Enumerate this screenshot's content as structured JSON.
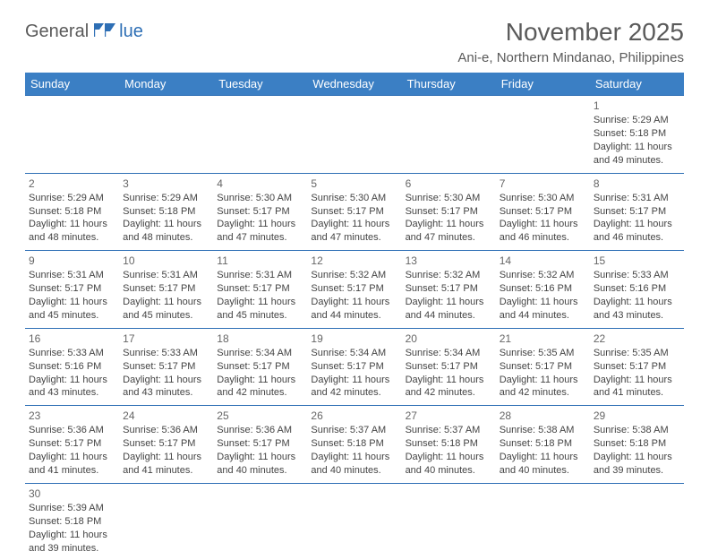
{
  "logo": {
    "text1": "General",
    "text2": "lue"
  },
  "title": "November 2025",
  "location": "Ani-e, Northern Mindanao, Philippines",
  "header_bg": "#3b7fc4",
  "border_color": "#2e6fb5",
  "weekdays": [
    "Sunday",
    "Monday",
    "Tuesday",
    "Wednesday",
    "Thursday",
    "Friday",
    "Saturday"
  ],
  "leading_blanks": 6,
  "days": [
    {
      "n": 1,
      "sr": "5:29 AM",
      "ss": "5:18 PM",
      "dl": "11 hours and 49 minutes."
    },
    {
      "n": 2,
      "sr": "5:29 AM",
      "ss": "5:18 PM",
      "dl": "11 hours and 48 minutes."
    },
    {
      "n": 3,
      "sr": "5:29 AM",
      "ss": "5:18 PM",
      "dl": "11 hours and 48 minutes."
    },
    {
      "n": 4,
      "sr": "5:30 AM",
      "ss": "5:17 PM",
      "dl": "11 hours and 47 minutes."
    },
    {
      "n": 5,
      "sr": "5:30 AM",
      "ss": "5:17 PM",
      "dl": "11 hours and 47 minutes."
    },
    {
      "n": 6,
      "sr": "5:30 AM",
      "ss": "5:17 PM",
      "dl": "11 hours and 47 minutes."
    },
    {
      "n": 7,
      "sr": "5:30 AM",
      "ss": "5:17 PM",
      "dl": "11 hours and 46 minutes."
    },
    {
      "n": 8,
      "sr": "5:31 AM",
      "ss": "5:17 PM",
      "dl": "11 hours and 46 minutes."
    },
    {
      "n": 9,
      "sr": "5:31 AM",
      "ss": "5:17 PM",
      "dl": "11 hours and 45 minutes."
    },
    {
      "n": 10,
      "sr": "5:31 AM",
      "ss": "5:17 PM",
      "dl": "11 hours and 45 minutes."
    },
    {
      "n": 11,
      "sr": "5:31 AM",
      "ss": "5:17 PM",
      "dl": "11 hours and 45 minutes."
    },
    {
      "n": 12,
      "sr": "5:32 AM",
      "ss": "5:17 PM",
      "dl": "11 hours and 44 minutes."
    },
    {
      "n": 13,
      "sr": "5:32 AM",
      "ss": "5:17 PM",
      "dl": "11 hours and 44 minutes."
    },
    {
      "n": 14,
      "sr": "5:32 AM",
      "ss": "5:16 PM",
      "dl": "11 hours and 44 minutes."
    },
    {
      "n": 15,
      "sr": "5:33 AM",
      "ss": "5:16 PM",
      "dl": "11 hours and 43 minutes."
    },
    {
      "n": 16,
      "sr": "5:33 AM",
      "ss": "5:16 PM",
      "dl": "11 hours and 43 minutes."
    },
    {
      "n": 17,
      "sr": "5:33 AM",
      "ss": "5:17 PM",
      "dl": "11 hours and 43 minutes."
    },
    {
      "n": 18,
      "sr": "5:34 AM",
      "ss": "5:17 PM",
      "dl": "11 hours and 42 minutes."
    },
    {
      "n": 19,
      "sr": "5:34 AM",
      "ss": "5:17 PM",
      "dl": "11 hours and 42 minutes."
    },
    {
      "n": 20,
      "sr": "5:34 AM",
      "ss": "5:17 PM",
      "dl": "11 hours and 42 minutes."
    },
    {
      "n": 21,
      "sr": "5:35 AM",
      "ss": "5:17 PM",
      "dl": "11 hours and 42 minutes."
    },
    {
      "n": 22,
      "sr": "5:35 AM",
      "ss": "5:17 PM",
      "dl": "11 hours and 41 minutes."
    },
    {
      "n": 23,
      "sr": "5:36 AM",
      "ss": "5:17 PM",
      "dl": "11 hours and 41 minutes."
    },
    {
      "n": 24,
      "sr": "5:36 AM",
      "ss": "5:17 PM",
      "dl": "11 hours and 41 minutes."
    },
    {
      "n": 25,
      "sr": "5:36 AM",
      "ss": "5:17 PM",
      "dl": "11 hours and 40 minutes."
    },
    {
      "n": 26,
      "sr": "5:37 AM",
      "ss": "5:18 PM",
      "dl": "11 hours and 40 minutes."
    },
    {
      "n": 27,
      "sr": "5:37 AM",
      "ss": "5:18 PM",
      "dl": "11 hours and 40 minutes."
    },
    {
      "n": 28,
      "sr": "5:38 AM",
      "ss": "5:18 PM",
      "dl": "11 hours and 40 minutes."
    },
    {
      "n": 29,
      "sr": "5:38 AM",
      "ss": "5:18 PM",
      "dl": "11 hours and 39 minutes."
    },
    {
      "n": 30,
      "sr": "5:39 AM",
      "ss": "5:18 PM",
      "dl": "11 hours and 39 minutes."
    }
  ],
  "labels": {
    "sunrise": "Sunrise:",
    "sunset": "Sunset:",
    "daylight": "Daylight:"
  }
}
